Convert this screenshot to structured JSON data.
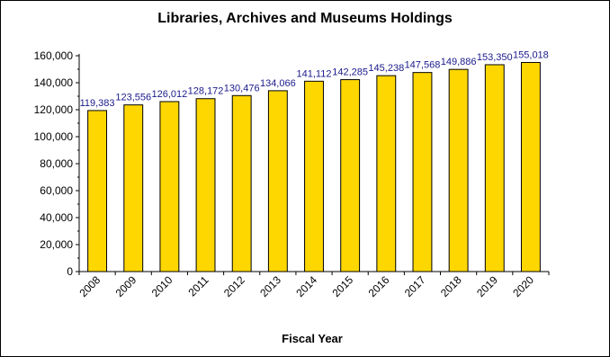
{
  "chart_data": {
    "type": "bar",
    "title": "Libraries, Archives and Museums Holdings",
    "xlabel": "Fiscal Year",
    "ylabel": "",
    "categories": [
      "2008",
      "2009",
      "2010",
      "2011",
      "2012",
      "2013",
      "2014",
      "2015",
      "2016",
      "2017",
      "2018",
      "2019",
      "2020"
    ],
    "values": [
      119383,
      123556,
      126012,
      128172,
      130476,
      134066,
      141112,
      142285,
      145238,
      147568,
      149886,
      153350,
      155018
    ],
    "data_labels": [
      "119,383",
      "123,556",
      "126,012",
      "128,172",
      "130,476",
      "134,066",
      "141,112",
      "142,285",
      "145,238",
      "147,568",
      "149,886",
      "153,350",
      "155,018"
    ],
    "y_ticks": [
      "0",
      "20,000",
      "40,000",
      "60,000",
      "80,000",
      "100,000",
      "120,000",
      "140,000",
      "160,000"
    ],
    "ylim": [
      0,
      160000
    ],
    "grid": false,
    "legend": "none",
    "bar_color": "#FFD700",
    "bar_edge_color": "#000000",
    "label_color": "#1a1a8c"
  }
}
